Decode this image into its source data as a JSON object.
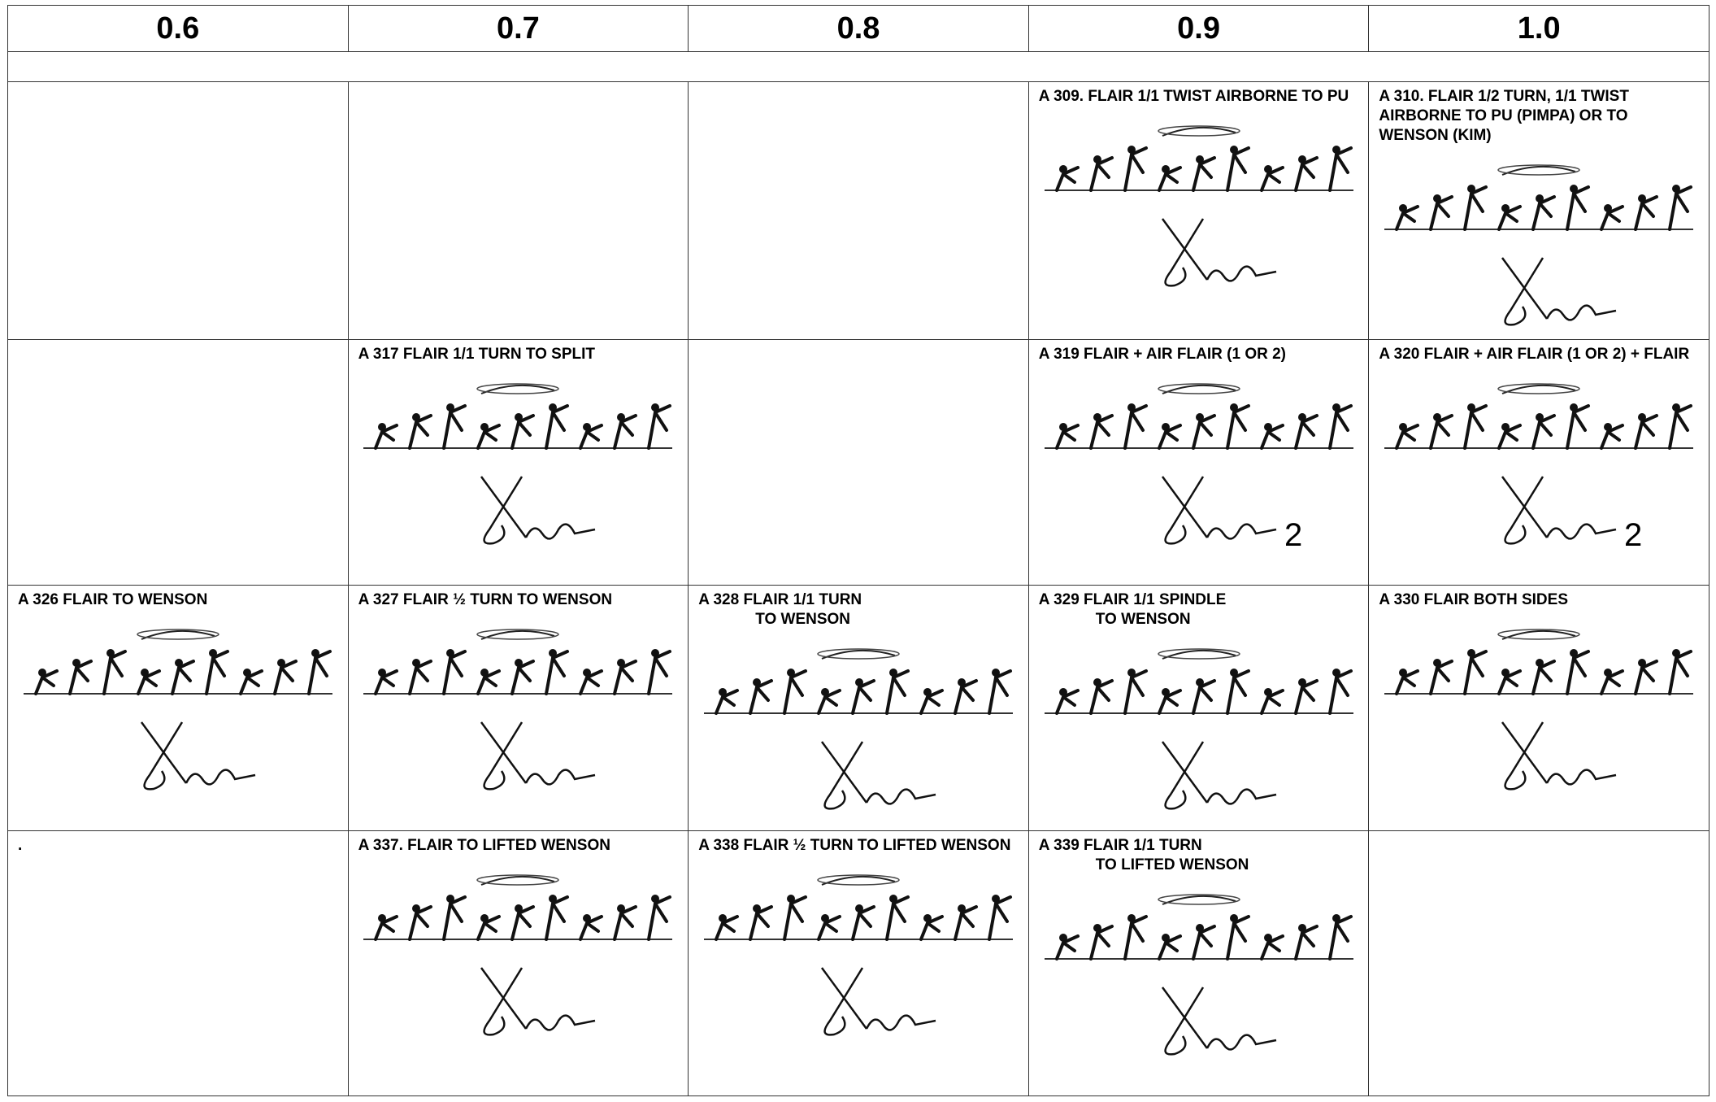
{
  "header": {
    "columns": [
      "0.6",
      "0.7",
      "0.8",
      "0.9",
      "1.0"
    ]
  },
  "rows": [
    [
      null,
      null,
      null,
      {
        "title": [
          "A 309.  FLAIR 1/1 TWIST AIRBORNE TO PU"
        ]
      },
      {
        "title": [
          "A 310.  FLAIR  1/2 TURN, 1/1 TWIST AIRBORNE TO PU (PIMPA) OR TO WENSON (KIM)"
        ]
      }
    ],
    [
      null,
      {
        "title": [
          "A 317  FLAIR 1/1 TURN TO SPLIT"
        ]
      },
      null,
      {
        "title": [
          "A 319  FLAIR  + AIR FLAIR (1 OR 2)"
        ],
        "note": "2"
      },
      {
        "title": [
          "A 320  FLAIR  + AIR FLAIR (1 OR 2) + FLAIR"
        ],
        "note": "2"
      }
    ],
    [
      {
        "title": [
          "A 326  FLAIR TO WENSON"
        ]
      },
      {
        "title": [
          "A 327  FLAIR ½ TURN TO WENSON"
        ]
      },
      {
        "title": [
          "A 328  FLAIR 1/1 TURN",
          "TO WENSON"
        ]
      },
      {
        "title": [
          "A 329  FLAIR  1/1 SPINDLE",
          "TO WENSON"
        ]
      },
      {
        "title": [
          "A 330  FLAIR  BOTH SIDES"
        ]
      }
    ],
    [
      {
        "text": "."
      },
      {
        "title": [
          "A 337. FLAIR TO LIFTED WENSON"
        ]
      },
      {
        "title": [
          "A 338  FLAIR ½ TURN TO LIFTED WENSON"
        ]
      },
      {
        "title": [
          "A 339 FLAIR 1/1 TURN",
          "TO LIFTED WENSON"
        ]
      },
      null
    ]
  ]
}
